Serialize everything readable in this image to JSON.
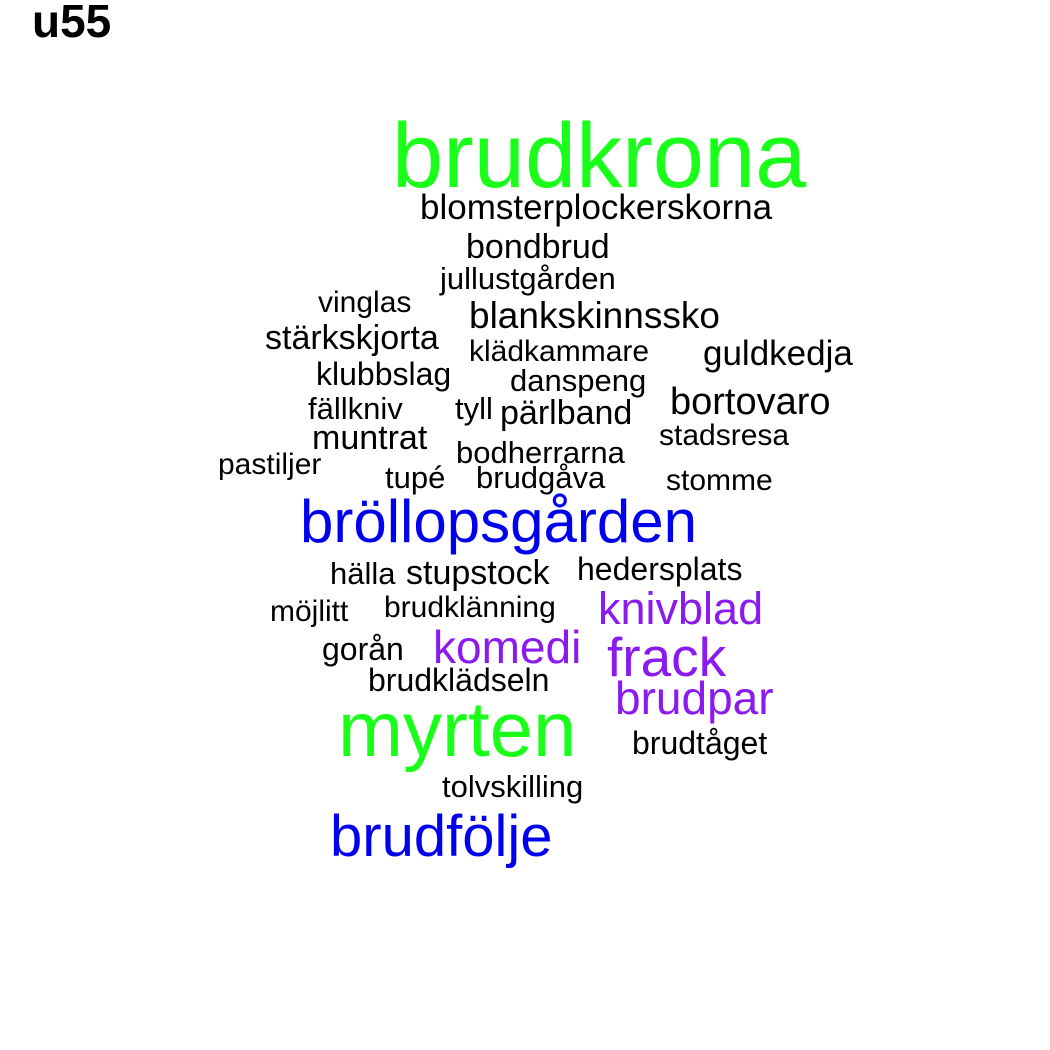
{
  "title": "u55",
  "colors": {
    "green": "#1aff1a",
    "blue": "#0000ee",
    "purple": "#8b1aee",
    "black": "#000000"
  },
  "words": {
    "brudkrona": "brudkrona",
    "blomsterplockerskorna": "blomsterplockerskorna",
    "bondbrud": "bondbrud",
    "jullustgarden": "jullustgården",
    "vinglas": "vinglas",
    "blankskinnssko": "blankskinnssko",
    "starkskjorta": "stärkskjorta",
    "kladkammare": "klädkammare",
    "guldkedja": "guldkedja",
    "klubbslag": "klubbslag",
    "danspeng": "danspeng",
    "fallkniv": "fällkniv",
    "tyll": "tyll",
    "parlband": "pärlband",
    "bortovaro": "bortovaro",
    "muntrat": "muntrat",
    "stadsresa": "stadsresa",
    "bodherrarna": "bodherrarna",
    "pastiljer": "pastiljer",
    "tupe": "tupé",
    "brudgava": "brudgåva",
    "stomme": "stomme",
    "brollopsgarden": "bröllopsgården",
    "halla": "hälla",
    "stupstock": "stupstock",
    "hedersplats": "hedersplats",
    "mojlitt": "möjlitt",
    "brudklanning": "brudklänning",
    "knivblad": "knivblad",
    "goran": "gorån",
    "komedi": "komedi",
    "frack": "frack",
    "brudkladseln": "brudklädseln",
    "brudpar": "brudpar",
    "myrten": "myrten",
    "brudtaget": "brudtåget",
    "tolvskilling": "tolvskilling",
    "brudfolje": "brudfölje"
  }
}
